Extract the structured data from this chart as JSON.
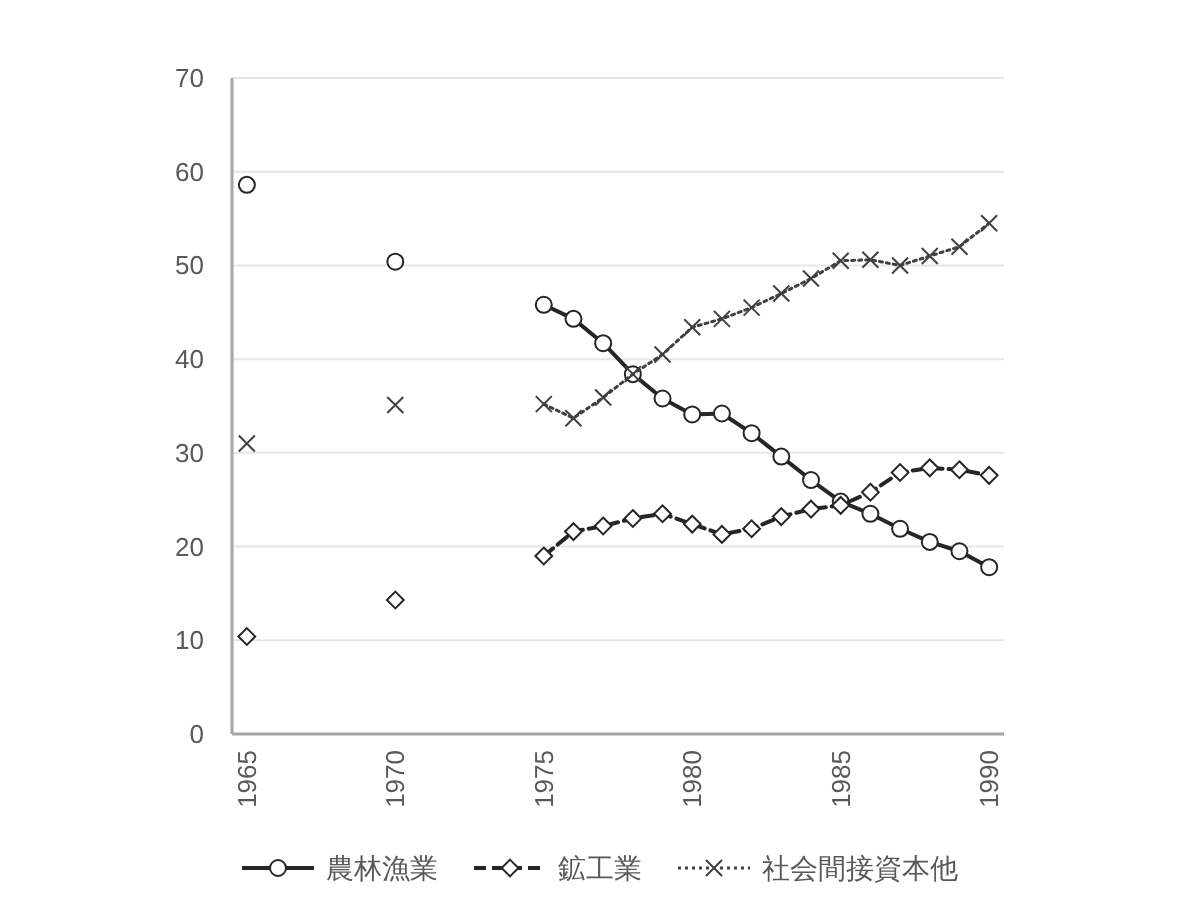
{
  "chart_data": {
    "type": "line",
    "x": [
      1965,
      1966,
      1967,
      1968,
      1969,
      1970,
      1971,
      1972,
      1973,
      1974,
      1975,
      1976,
      1977,
      1978,
      1979,
      1980,
      1981,
      1982,
      1983,
      1984,
      1985,
      1986,
      1987,
      1988,
      1989,
      1990
    ],
    "series": [
      {
        "name": "農林漁業",
        "color": "#262626",
        "marker": "circle",
        "line_style": "solid",
        "values": [
          58.6,
          null,
          null,
          null,
          null,
          50.4,
          null,
          null,
          null,
          null,
          45.8,
          44.3,
          41.7,
          38.4,
          35.8,
          34.1,
          34.2,
          32.1,
          29.6,
          27.1,
          24.8,
          23.5,
          21.9,
          20.5,
          19.5,
          17.8
        ]
      },
      {
        "name": "鉱工業",
        "color": "#262626",
        "marker": "diamond",
        "line_style": "dashed",
        "values": [
          10.4,
          null,
          null,
          null,
          null,
          14.3,
          null,
          null,
          null,
          null,
          19.0,
          21.6,
          22.2,
          23.0,
          23.5,
          22.4,
          21.3,
          21.9,
          23.2,
          24.0,
          24.4,
          25.8,
          27.9,
          28.4,
          28.2,
          27.6
        ]
      },
      {
        "name": "社会間接資本他",
        "color": "#404040",
        "marker": "cross",
        "line_style": "dotted",
        "values": [
          31.0,
          null,
          null,
          null,
          null,
          35.1,
          null,
          null,
          null,
          null,
          35.2,
          33.7,
          35.9,
          38.4,
          40.5,
          43.4,
          44.3,
          45.5,
          47.0,
          48.6,
          50.5,
          50.6,
          50.0,
          51.0,
          52.0,
          54.5
        ]
      }
    ],
    "xlim": [
      1964.5,
      1990.5
    ],
    "xticks": [
      1965,
      1970,
      1975,
      1980,
      1985,
      1990
    ],
    "ylim": [
      0,
      70
    ],
    "yticks": [
      0,
      10,
      20,
      30,
      40,
      50,
      60,
      70
    ],
    "grid": "y",
    "legend": "bottom"
  }
}
